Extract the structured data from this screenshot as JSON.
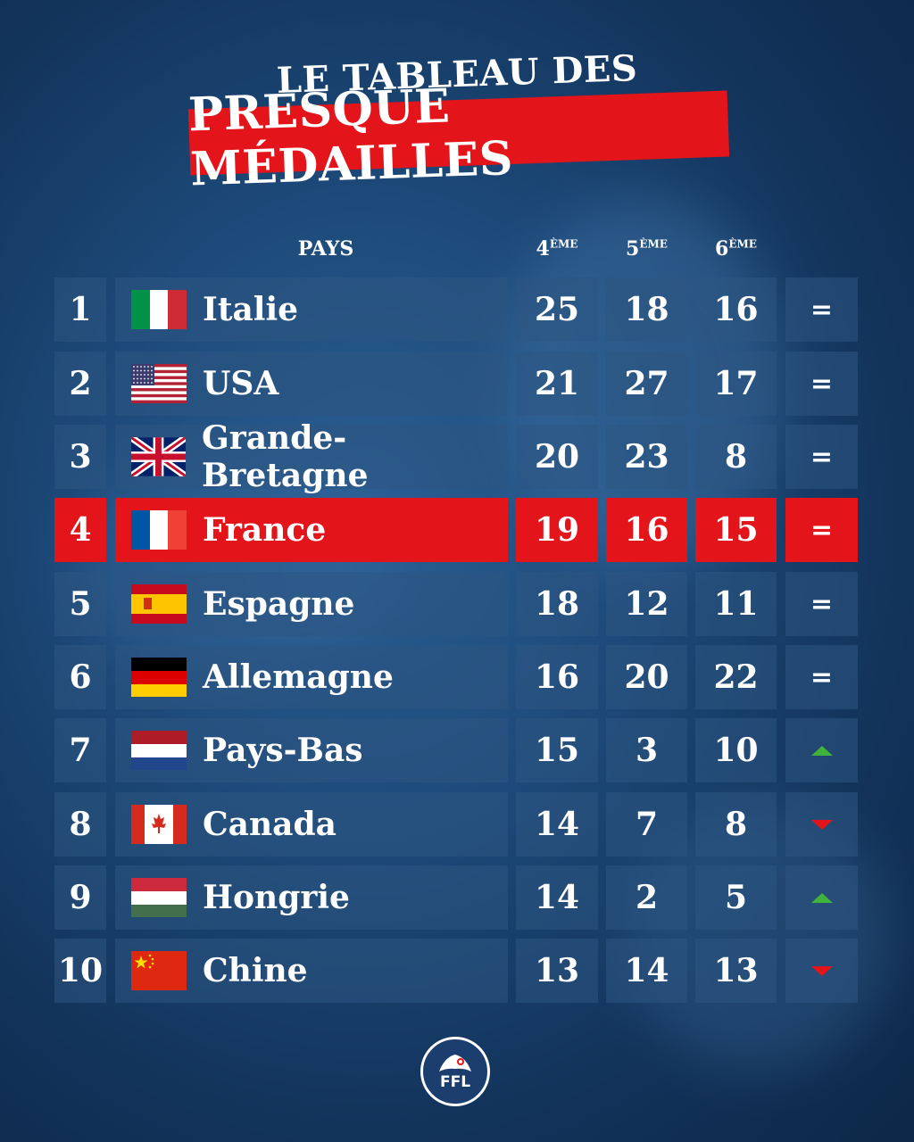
{
  "title": {
    "line1": "LE TABLEAU DES",
    "line2": "PRESQUE MÉDAILLES"
  },
  "headers": {
    "country": "PAYS",
    "p4": {
      "num": "4",
      "sup": "ÈME"
    },
    "p5": {
      "num": "5",
      "sup": "ÈME"
    },
    "p6": {
      "num": "6",
      "sup": "ÈME"
    }
  },
  "rows": [
    {
      "rank": "1",
      "country": "Italie",
      "p4": "25",
      "p5": "18",
      "p6": "16",
      "trend": "=",
      "flag": "italy"
    },
    {
      "rank": "2",
      "country": "USA",
      "p4": "21",
      "p5": "27",
      "p6": "17",
      "trend": "=",
      "flag": "usa"
    },
    {
      "rank": "3",
      "country": "Grande-Bretagne",
      "p4": "20",
      "p5": "23",
      "p6": "8",
      "trend": "=",
      "flag": "uk"
    },
    {
      "rank": "4",
      "country": "France",
      "p4": "19",
      "p5": "16",
      "p6": "15",
      "trend": "=",
      "flag": "france",
      "highlight": true
    },
    {
      "rank": "5",
      "country": "Espagne",
      "p4": "18",
      "p5": "12",
      "p6": "11",
      "trend": "=",
      "flag": "spain"
    },
    {
      "rank": "6",
      "country": "Allemagne",
      "p4": "16",
      "p5": "20",
      "p6": "22",
      "trend": "=",
      "flag": "germany"
    },
    {
      "rank": "7",
      "country": "Pays-Bas",
      "p4": "15",
      "p5": "3",
      "p6": "10",
      "trend": "up",
      "flag": "netherlands"
    },
    {
      "rank": "8",
      "country": "Canada",
      "p4": "14",
      "p5": "7",
      "p6": "8",
      "trend": "down",
      "flag": "canada"
    },
    {
      "rank": "9",
      "country": "Hongrie",
      "p4": "14",
      "p5": "2",
      "p6": "5",
      "trend": "up",
      "flag": "hungary"
    },
    {
      "rank": "10",
      "country": "Chine",
      "p4": "13",
      "p5": "14",
      "p6": "13",
      "trend": "down",
      "flag": "china"
    }
  ],
  "colors": {
    "accent": "#e4141b",
    "up": "#3fb33c",
    "down": "#e4141b"
  },
  "logo": {
    "text": "FFL"
  }
}
